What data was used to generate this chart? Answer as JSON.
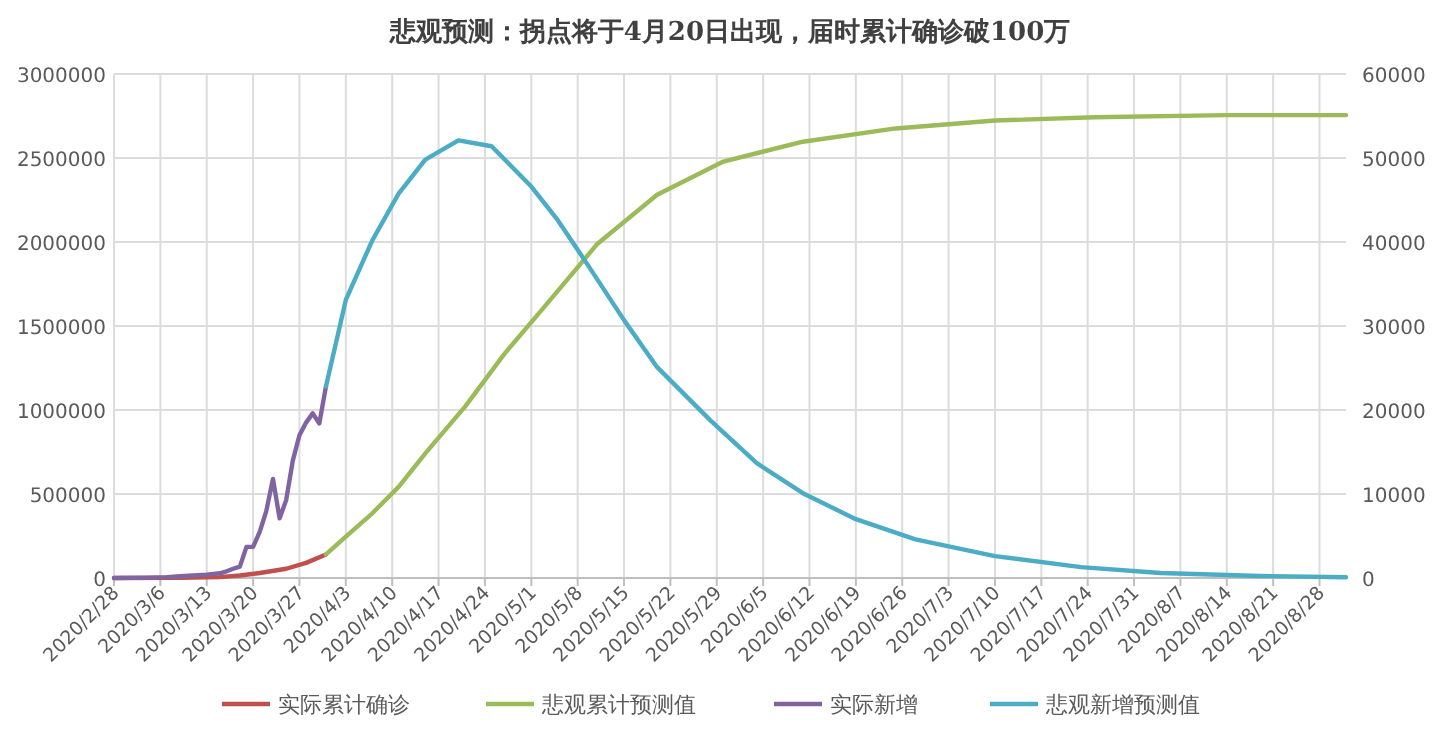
{
  "chart_data": {
    "type": "line",
    "title": "悲观预测：拐点将于4月20日出现，届时累计确诊破100万",
    "series": [
      {
        "name": "实际累计确诊",
        "color": "#c0504d",
        "x": [
          "2020-02-28",
          "2020-03-09",
          "2020-03-15",
          "2020-03-18",
          "2020-03-21",
          "2020-03-25",
          "2020-03-28",
          "2020-03-31"
        ],
        "values": [
          0,
          500,
          5000,
          15000,
          30000,
          55000,
          90000,
          140000
        ]
      },
      {
        "name": "悲观累计预测值",
        "color": "#9bbb59",
        "x": [
          "2020-03-31",
          "2020-04-03",
          "2020-04-07",
          "2020-04-11",
          "2020-04-15",
          "2020-04-21",
          "2020-04-27",
          "2020-05-03",
          "2020-05-11",
          "2020-05-20",
          "2020-05-30",
          "2020-06-11",
          "2020-06-25",
          "2020-07-10",
          "2020-07-25",
          "2020-08-14",
          "2020-09-01"
        ],
        "values": [
          140000,
          246000,
          385000,
          544000,
          742000,
          1020000,
          1337000,
          1615000,
          1990000,
          2281000,
          2479000,
          2597000,
          2676000,
          2723000,
          2743000,
          2755000,
          2755000
        ]
      },
      {
        "name": "实际新增",
        "color": "#8064a2",
        "axis": "y2",
        "x": [
          "2020-02-28",
          "2020-03-04",
          "2020-03-07",
          "2020-03-09",
          "2020-03-11",
          "2020-03-13",
          "2020-03-15",
          "2020-03-16",
          "2020-03-17",
          "2020-03-18",
          "2020-03-19",
          "2020-03-20",
          "2020-03-21",
          "2020-03-22",
          "2020-03-23",
          "2020-03-24",
          "2020-03-25",
          "2020-03-26",
          "2020-03-27",
          "2020-03-28",
          "2020-03-29",
          "2020-03-30",
          "2020-03-31"
        ],
        "values": [
          0,
          50,
          100,
          200,
          300,
          400,
          560,
          800,
          1100,
          1350,
          3700,
          3700,
          5500,
          8000,
          11800,
          7100,
          9300,
          14000,
          17000,
          18500,
          19600,
          18400,
          22800
        ]
      },
      {
        "name": "悲观新增预测值",
        "color": "#4bacc6",
        "axis": "y2",
        "x": [
          "2020-03-31",
          "2020-04-03",
          "2020-04-07",
          "2020-04-11",
          "2020-04-15",
          "2020-04-20",
          "2020-04-25",
          "2020-05-01",
          "2020-05-05",
          "2020-05-09",
          "2020-05-15",
          "2020-05-20",
          "2020-05-28",
          "2020-06-04",
          "2020-06-11",
          "2020-06-19",
          "2020-06-28",
          "2020-07-10",
          "2020-07-23",
          "2020-08-04",
          "2020-08-19",
          "2020-09-01"
        ],
        "values": [
          22800,
          33100,
          40200,
          45800,
          49800,
          52100,
          51400,
          46600,
          42600,
          37900,
          30700,
          25100,
          18800,
          13700,
          10100,
          7000,
          4600,
          2600,
          1300,
          600,
          240,
          80
        ]
      }
    ],
    "xlim": [
      "2020-02-28",
      "2020-09-01"
    ],
    "xticks": [
      {
        "value": "2020-02-28",
        "label": "2020/2/28"
      },
      {
        "value": "2020-03-06",
        "label": "2020/3/6"
      },
      {
        "value": "2020-03-13",
        "label": "2020/3/13"
      },
      {
        "value": "2020-03-20",
        "label": "2020/3/20"
      },
      {
        "value": "2020-03-27",
        "label": "2020/3/27"
      },
      {
        "value": "2020-04-03",
        "label": "2020/4/3"
      },
      {
        "value": "2020-04-10",
        "label": "2020/4/10"
      },
      {
        "value": "2020-04-17",
        "label": "2020/4/17"
      },
      {
        "value": "2020-04-24",
        "label": "2020/4/24"
      },
      {
        "value": "2020-05-01",
        "label": "2020/5/1"
      },
      {
        "value": "2020-05-08",
        "label": "2020/5/8"
      },
      {
        "value": "2020-05-15",
        "label": "2020/5/15"
      },
      {
        "value": "2020-05-22",
        "label": "2020/5/22"
      },
      {
        "value": "2020-05-29",
        "label": "2020/5/29"
      },
      {
        "value": "2020-06-05",
        "label": "2020/6/5"
      },
      {
        "value": "2020-06-12",
        "label": "2020/6/12"
      },
      {
        "value": "2020-06-19",
        "label": "2020/6/19"
      },
      {
        "value": "2020-06-26",
        "label": "2020/6/26"
      },
      {
        "value": "2020-07-03",
        "label": "2020/7/3"
      },
      {
        "value": "2020-07-10",
        "label": "2020/7/10"
      },
      {
        "value": "2020-07-17",
        "label": "2020/7/17"
      },
      {
        "value": "2020-07-24",
        "label": "2020/7/24"
      },
      {
        "value": "2020-07-31",
        "label": "2020/7/31"
      },
      {
        "value": "2020-08-07",
        "label": "2020/8/7"
      },
      {
        "value": "2020-08-14",
        "label": "2020/8/14"
      },
      {
        "value": "2020-08-21",
        "label": "2020/8/21"
      },
      {
        "value": "2020-08-28",
        "label": "2020/8/28"
      }
    ],
    "ylim": [
      0,
      3000000
    ],
    "yticks": [
      0,
      500000,
      1000000,
      1500000,
      2000000,
      2500000,
      3000000
    ],
    "y2lim": [
      0,
      60000
    ],
    "y2ticks": [
      0,
      10000,
      20000,
      30000,
      40000,
      50000,
      60000
    ],
    "grid": true,
    "legend": "bottom"
  }
}
